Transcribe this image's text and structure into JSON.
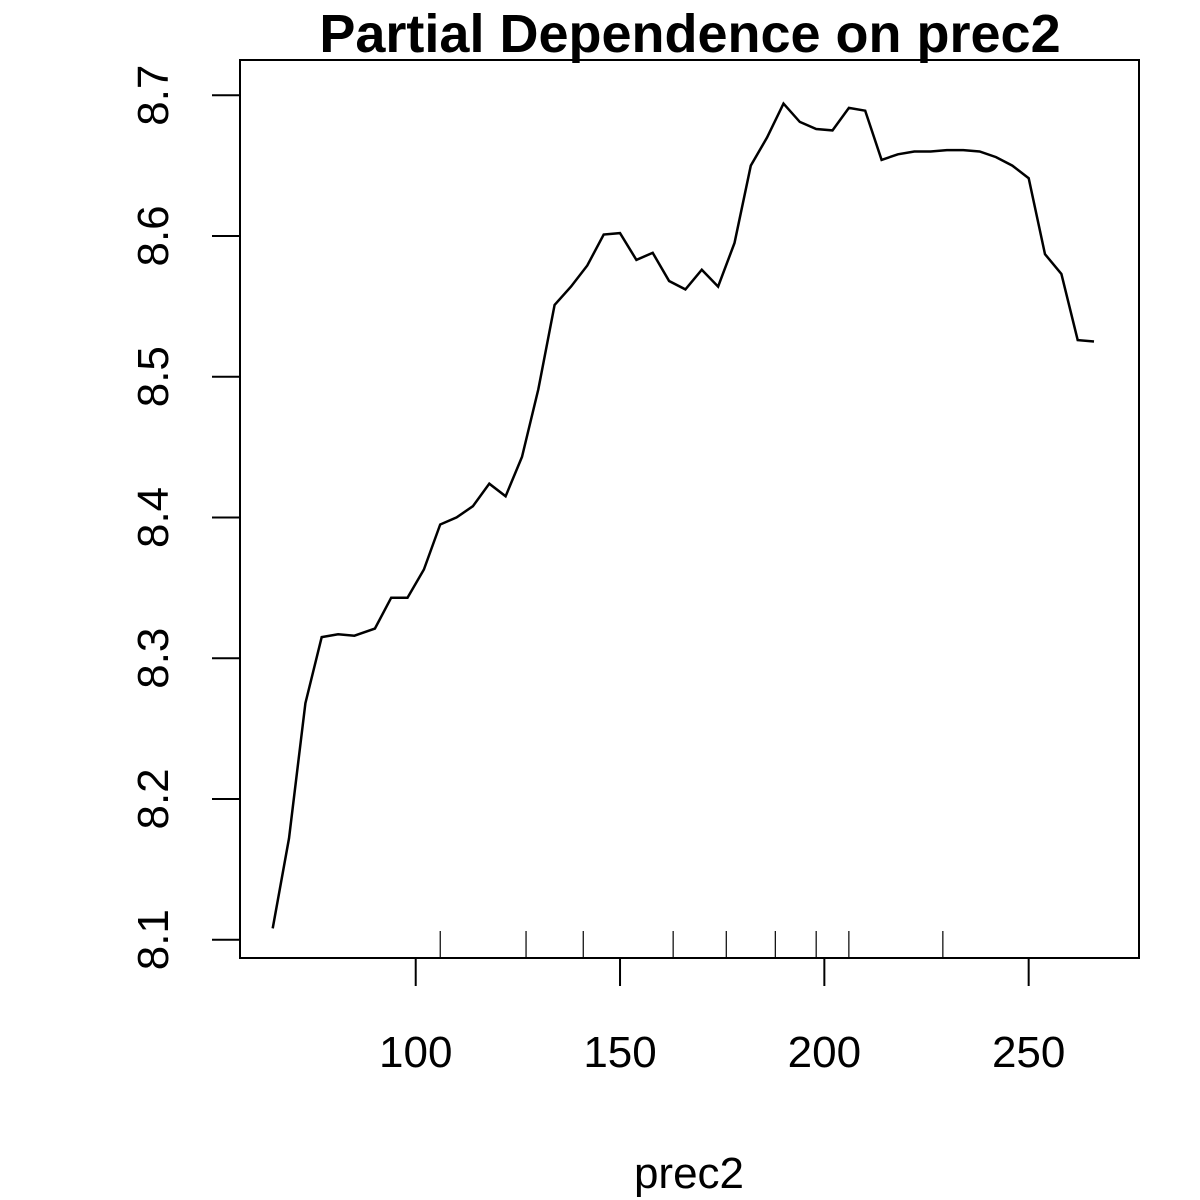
{
  "chart_data": {
    "type": "line",
    "title": "Partial Dependence on prec2",
    "xlabel": "prec2",
    "ylabel": "",
    "xlim": [
      57,
      277
    ],
    "ylim": [
      8.087,
      8.725
    ],
    "xticks": [
      100,
      150,
      200,
      250
    ],
    "yticks": [
      8.1,
      8.2,
      8.3,
      8.4,
      8.5,
      8.6,
      8.7
    ],
    "xtick_labels": [
      "100",
      "150",
      "200",
      "250"
    ],
    "ytick_labels": [
      "8.1",
      "8.2",
      "8.3",
      "8.4",
      "8.5",
      "8.6",
      "8.7"
    ],
    "grid": false,
    "rug": [
      106,
      127,
      141,
      163,
      176,
      188,
      198,
      206,
      229
    ],
    "series": [
      {
        "x": [
          65,
          69,
          73,
          77,
          81,
          85,
          90,
          94,
          98,
          102,
          106,
          110,
          114,
          118,
          122,
          126,
          130,
          134,
          138,
          142,
          146,
          150,
          154,
          158,
          162,
          166,
          170,
          174,
          178,
          182,
          186,
          190,
          194,
          198,
          202,
          206,
          210,
          214,
          218,
          222,
          226,
          230,
          234,
          238,
          242,
          246,
          250,
          254,
          258,
          262,
          266
        ],
        "y": [
          8.108,
          8.172,
          8.268,
          8.315,
          8.317,
          8.316,
          8.321,
          8.343,
          8.343,
          8.363,
          8.395,
          8.4,
          8.408,
          8.424,
          8.415,
          8.443,
          8.491,
          8.551,
          8.564,
          8.579,
          8.601,
          8.602,
          8.583,
          8.588,
          8.568,
          8.562,
          8.576,
          8.564,
          8.595,
          8.65,
          8.67,
          8.694,
          8.681,
          8.676,
          8.675,
          8.691,
          8.689,
          8.654,
          8.658,
          8.66,
          8.66,
          8.661,
          8.661,
          8.66,
          8.656,
          8.65,
          8.641,
          8.587,
          8.573,
          8.526,
          8.525
        ]
      }
    ]
  }
}
